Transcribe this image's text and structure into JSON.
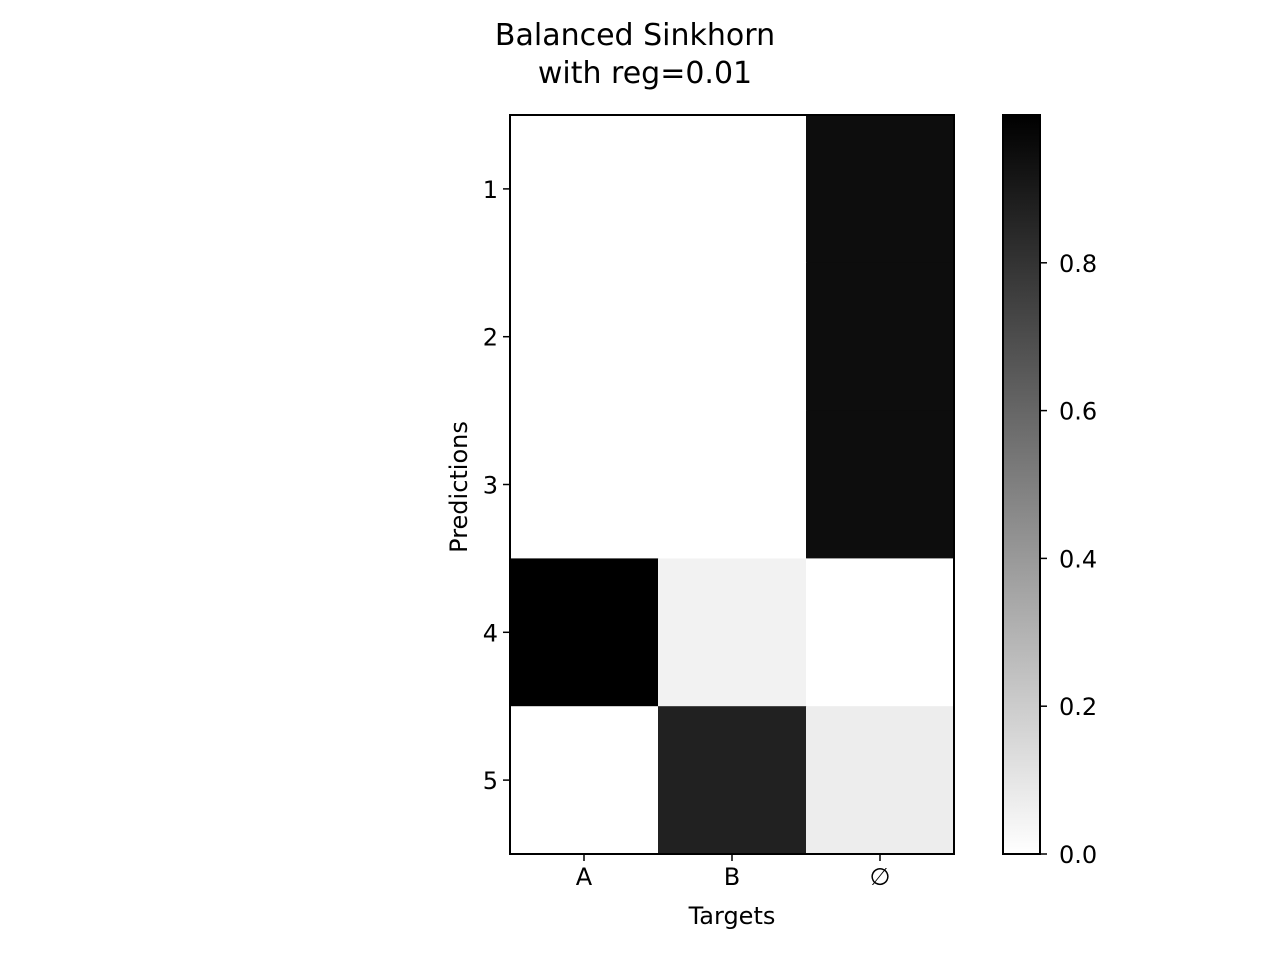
{
  "chart_data": {
    "type": "heatmap",
    "title": [
      "Balanced Sinkhorn",
      "with reg=0.01"
    ],
    "xlabel": "Targets",
    "ylabel": "Predictions",
    "x_categories": [
      {
        "label": "A",
        "color": "#ff0000"
      },
      {
        "label": "B",
        "color": "#33ff00"
      },
      {
        "label": "∅",
        "color": "#000000"
      }
    ],
    "y_categories": [
      "1",
      "2",
      "3",
      "4",
      "5"
    ],
    "values": [
      [
        0.0,
        0.0,
        0.95
      ],
      [
        0.0,
        0.0,
        0.95
      ],
      [
        0.0,
        0.0,
        0.95
      ],
      [
        1.0,
        0.05,
        0.0
      ],
      [
        0.0,
        0.87,
        0.07
      ]
    ],
    "colormap": "gray_r",
    "colorbar": {
      "min": 0.0,
      "max": 1.0,
      "ticks": [
        0.0,
        0.2,
        0.4,
        0.6,
        0.8
      ],
      "tick_labels": [
        "0.0",
        "0.2",
        "0.4",
        "0.6",
        "0.8"
      ]
    },
    "grid": false
  }
}
